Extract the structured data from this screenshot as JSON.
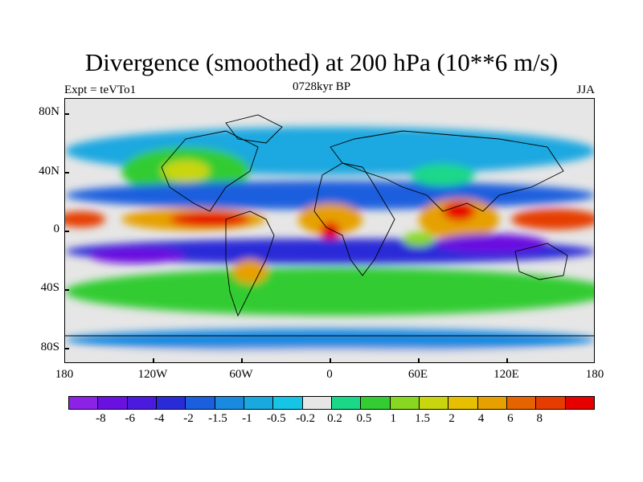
{
  "title": "Divergence (smoothed) at 200 hPa (10**6 m/s)",
  "subtitle_left": "Expt = teVTo1",
  "subtitle_center": "0728kyr BP",
  "subtitle_right": "JJA",
  "lat_labels": [
    "80N",
    "40N",
    "0",
    "40S",
    "80S"
  ],
  "lon_labels": [
    "180",
    "120W",
    "60W",
    "0",
    "60E",
    "120E",
    "180"
  ],
  "colorbar": {
    "colors": [
      "#8b22e6",
      "#6a10e0",
      "#4a1adf",
      "#2a2bd8",
      "#1a5fde",
      "#1a8ae0",
      "#1aa8e0",
      "#16c5e6",
      "#e6e6e6",
      "#1ad888",
      "#33cc33",
      "#88d822",
      "#c9d60e",
      "#e6c000",
      "#e6a000",
      "#e66400",
      "#e63c00",
      "#e60000"
    ],
    "labels": [
      "-8",
      "-6",
      "-4",
      "-2",
      "-1.5",
      "-1",
      "-0.5",
      "-0.2",
      "0.2",
      "0.5",
      "1",
      "1.5",
      "2",
      "4",
      "6",
      "8"
    ]
  },
  "map_features": {
    "coastlines": "world-continents",
    "dominant_field": "upper-level divergence"
  }
}
